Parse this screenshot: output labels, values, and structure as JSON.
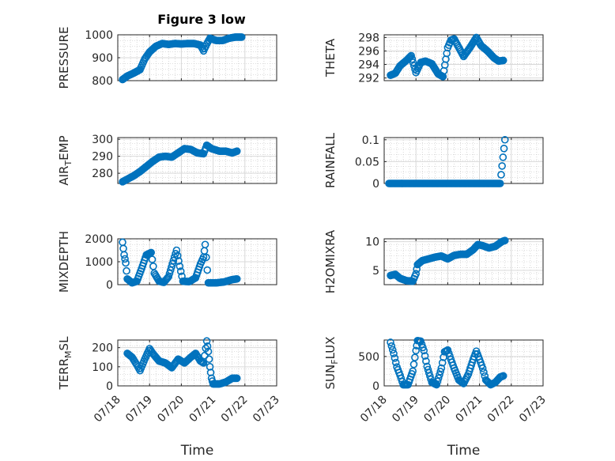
{
  "title": "Figure 3 low",
  "marker_color": "#0072BD",
  "axes_color": "#262626",
  "grid_color": "#bfbfbf",
  "chart_data": [
    {
      "type": "scatter",
      "ylabel": "PRESSURE",
      "yticks": [
        "800",
        "900",
        "1000"
      ],
      "ytick_values": [
        800,
        900,
        1000
      ],
      "ylim": [
        800,
        1000
      ],
      "xlim": [
        0,
        5
      ],
      "grid": true,
      "minor_grid": true,
      "points": [
        [
          0.15,
          805
        ],
        [
          0.3,
          820
        ],
        [
          0.5,
          833
        ],
        [
          0.7,
          848
        ],
        [
          0.85,
          895
        ],
        [
          1.0,
          925
        ],
        [
          1.2,
          950
        ],
        [
          1.4,
          962
        ],
        [
          1.6,
          958
        ],
        [
          1.8,
          962
        ],
        [
          2.0,
          960
        ],
        [
          2.2,
          962
        ],
        [
          2.4,
          962
        ],
        [
          2.6,
          955
        ],
        [
          2.7,
          930
        ],
        [
          2.8,
          960
        ],
        [
          2.9,
          985
        ],
        [
          3.1,
          975
        ],
        [
          3.3,
          975
        ],
        [
          3.5,
          985
        ],
        [
          3.7,
          990
        ],
        [
          3.9,
          990
        ]
      ]
    },
    {
      "type": "scatter",
      "ylabel": "THETA",
      "yticks": [
        "292",
        "294",
        "296",
        "298"
      ],
      "ytick_values": [
        292,
        294,
        296,
        298
      ],
      "ylim": [
        291.6,
        298.4
      ],
      "xlim": [
        0,
        5
      ],
      "grid": true,
      "minor_grid": true,
      "points": [
        [
          0.2,
          292.4
        ],
        [
          0.35,
          292.7
        ],
        [
          0.5,
          293.8
        ],
        [
          0.7,
          294.6
        ],
        [
          0.85,
          295.3
        ],
        [
          1.0,
          292.8
        ],
        [
          1.15,
          294.3
        ],
        [
          1.3,
          294.5
        ],
        [
          1.5,
          294.1
        ],
        [
          1.7,
          292.6
        ],
        [
          1.85,
          292.2
        ],
        [
          2.0,
          296.5
        ],
        [
          2.1,
          297.6
        ],
        [
          2.2,
          297.8
        ],
        [
          2.35,
          296.5
        ],
        [
          2.5,
          295.2
        ],
        [
          2.7,
          296.5
        ],
        [
          2.9,
          298.0
        ],
        [
          3.05,
          296.8
        ],
        [
          3.25,
          296.0
        ],
        [
          3.45,
          295.0
        ],
        [
          3.6,
          294.5
        ],
        [
          3.75,
          294.6
        ]
      ]
    },
    {
      "type": "scatter",
      "ylabel": "AIR",
      "ylabel_sub": "T",
      "ylabel_tail": "EMP",
      "yticks": [
        "280",
        "290",
        "300"
      ],
      "ytick_values": [
        280,
        290,
        300
      ],
      "ylim": [
        274,
        301
      ],
      "xlim": [
        0,
        5
      ],
      "grid": true,
      "minor_grid": true,
      "points": [
        [
          0.15,
          275
        ],
        [
          0.3,
          276.5
        ],
        [
          0.5,
          278.5
        ],
        [
          0.7,
          281
        ],
        [
          0.9,
          284
        ],
        [
          1.1,
          287
        ],
        [
          1.3,
          289.5
        ],
        [
          1.5,
          290
        ],
        [
          1.7,
          289.5
        ],
        [
          1.9,
          292
        ],
        [
          2.1,
          294.5
        ],
        [
          2.3,
          294
        ],
        [
          2.5,
          292
        ],
        [
          2.7,
          291.5
        ],
        [
          2.8,
          296.5
        ],
        [
          2.95,
          294.5
        ],
        [
          3.2,
          293
        ],
        [
          3.4,
          293
        ],
        [
          3.6,
          292
        ],
        [
          3.75,
          293
        ]
      ]
    },
    {
      "type": "scatter",
      "ylabel": "RAINFALL",
      "yticks": [
        "0",
        "0.05",
        "0.1"
      ],
      "ytick_values": [
        0,
        0.05,
        0.1
      ],
      "ylim": [
        0,
        0.105
      ],
      "xlim": [
        0,
        5
      ],
      "grid": true,
      "minor_grid": true,
      "points": [
        [
          0.15,
          0
        ],
        [
          0.45,
          0
        ],
        [
          0.75,
          0
        ],
        [
          1.05,
          0
        ],
        [
          1.35,
          0
        ],
        [
          1.65,
          0
        ],
        [
          1.95,
          0
        ],
        [
          2.25,
          0
        ],
        [
          2.55,
          0
        ],
        [
          2.85,
          0
        ],
        [
          3.15,
          0
        ],
        [
          3.45,
          0
        ],
        [
          3.65,
          0
        ],
        [
          3.8,
          0.1
        ]
      ]
    },
    {
      "type": "scatter",
      "ylabel": "MIXDEPTH",
      "yticks": [
        "0",
        "1000",
        "2000"
      ],
      "ytick_values": [
        0,
        1000,
        2000
      ],
      "ylim": [
        0,
        2000
      ],
      "xlim": [
        0,
        5
      ],
      "grid": true,
      "minor_grid": true,
      "points": [
        [
          0.15,
          1850
        ],
        [
          0.2,
          1300
        ],
        [
          0.25,
          950
        ],
        [
          0.3,
          250
        ],
        [
          0.45,
          80
        ],
        [
          0.6,
          150
        ],
        [
          0.75,
          700
        ],
        [
          0.9,
          1300
        ],
        [
          1.05,
          1400
        ],
        [
          1.15,
          500
        ],
        [
          1.3,
          150
        ],
        [
          1.45,
          100
        ],
        [
          1.6,
          350
        ],
        [
          1.75,
          1050
        ],
        [
          1.85,
          1500
        ],
        [
          1.95,
          800
        ],
        [
          2.05,
          150
        ],
        [
          2.25,
          130
        ],
        [
          2.45,
          300
        ],
        [
          2.6,
          900
        ],
        [
          2.7,
          1200
        ],
        [
          2.75,
          1750
        ],
        [
          2.85,
          80
        ],
        [
          3.1,
          80
        ],
        [
          3.35,
          120
        ],
        [
          3.6,
          220
        ],
        [
          3.75,
          250
        ]
      ]
    },
    {
      "type": "scatter",
      "ylabel": "H2OMIXRA",
      "yticks": [
        "5",
        "10"
      ],
      "ytick_values": [
        5,
        10
      ],
      "ylim": [
        2.5,
        10.5
      ],
      "xlim": [
        0,
        5
      ],
      "grid": true,
      "minor_grid": true,
      "points": [
        [
          0.2,
          4.1
        ],
        [
          0.35,
          4.3
        ],
        [
          0.5,
          3.6
        ],
        [
          0.7,
          3.2
        ],
        [
          0.9,
          3.1
        ],
        [
          1.0,
          4.4
        ],
        [
          1.05,
          6.0
        ],
        [
          1.2,
          6.7
        ],
        [
          1.4,
          7.0
        ],
        [
          1.6,
          7.3
        ],
        [
          1.8,
          7.5
        ],
        [
          2.0,
          7.0
        ],
        [
          2.2,
          7.6
        ],
        [
          2.4,
          7.8
        ],
        [
          2.6,
          7.8
        ],
        [
          2.8,
          8.6
        ],
        [
          2.95,
          9.5
        ],
        [
          3.1,
          9.3
        ],
        [
          3.3,
          8.9
        ],
        [
          3.5,
          9.2
        ],
        [
          3.7,
          10.0
        ],
        [
          3.8,
          10.2
        ]
      ]
    },
    {
      "type": "scatter",
      "ylabel": "TERR",
      "ylabel_sub": "M",
      "ylabel_tail": "SL",
      "yticks": [
        "0",
        "100",
        "200"
      ],
      "ytick_values": [
        0,
        100,
        200
      ],
      "ylim": [
        0,
        240
      ],
      "xlim": [
        0,
        5
      ],
      "grid": true,
      "minor_grid": true,
      "xticks": [
        "07/18",
        "07/19",
        "07/20",
        "07/21",
        "07/22",
        "07/23"
      ],
      "xlabel": "Time",
      "points": [
        [
          0.3,
          170
        ],
        [
          0.45,
          150
        ],
        [
          0.6,
          110
        ],
        [
          0.7,
          80
        ],
        [
          0.85,
          140
        ],
        [
          1.0,
          195
        ],
        [
          1.1,
          170
        ],
        [
          1.3,
          130
        ],
        [
          1.5,
          120
        ],
        [
          1.7,
          95
        ],
        [
          1.9,
          140
        ],
        [
          2.1,
          120
        ],
        [
          2.3,
          150
        ],
        [
          2.45,
          170
        ],
        [
          2.6,
          130
        ],
        [
          2.7,
          120
        ],
        [
          2.8,
          235
        ],
        [
          2.85,
          180
        ],
        [
          2.9,
          100
        ],
        [
          2.95,
          40
        ],
        [
          3.0,
          10
        ],
        [
          3.2,
          10
        ],
        [
          3.4,
          20
        ],
        [
          3.6,
          40
        ],
        [
          3.75,
          40
        ]
      ]
    },
    {
      "type": "scatter",
      "ylabel": "SUN",
      "ylabel_sub": "F",
      "ylabel_tail": "LUX",
      "yticks": [
        "0",
        "500"
      ],
      "ytick_values": [
        0,
        500
      ],
      "ylim": [
        0,
        780
      ],
      "xlim": [
        0,
        5
      ],
      "grid": true,
      "minor_grid": true,
      "xticks": [
        "07/18",
        "07/19",
        "07/20",
        "07/21",
        "07/22",
        "07/23"
      ],
      "xlabel": "Time",
      "points": [
        [
          0.2,
          740
        ],
        [
          0.3,
          550
        ],
        [
          0.4,
          320
        ],
        [
          0.5,
          180
        ],
        [
          0.6,
          20
        ],
        [
          0.75,
          20
        ],
        [
          0.9,
          250
        ],
        [
          1.0,
          600
        ],
        [
          1.05,
          770
        ],
        [
          1.15,
          760
        ],
        [
          1.25,
          600
        ],
        [
          1.35,
          330
        ],
        [
          1.5,
          60
        ],
        [
          1.65,
          20
        ],
        [
          1.8,
          300
        ],
        [
          1.9,
          580
        ],
        [
          2.0,
          610
        ],
        [
          2.1,
          450
        ],
        [
          2.2,
          300
        ],
        [
          2.35,
          100
        ],
        [
          2.5,
          40
        ],
        [
          2.65,
          200
        ],
        [
          2.8,
          450
        ],
        [
          2.9,
          590
        ],
        [
          3.0,
          450
        ],
        [
          3.1,
          300
        ],
        [
          3.2,
          100
        ],
        [
          3.35,
          20
        ],
        [
          3.5,
          60
        ],
        [
          3.65,
          150
        ],
        [
          3.75,
          170
        ]
      ]
    }
  ]
}
